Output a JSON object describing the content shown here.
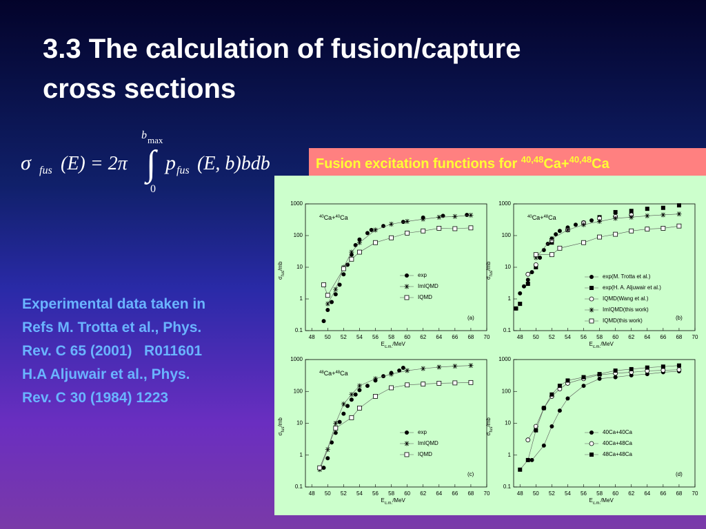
{
  "slide": {
    "title": "3.3 The calculation of fusion/capture cross sections",
    "formula": [
      "σ",
      "fus",
      "(E) = 2π",
      "∫",
      "b",
      "max",
      "0",
      "p",
      "fus",
      "(E, b)bdb"
    ],
    "notes": [
      "Experimental data taken in",
      "Refs M. Trotta et al., Phys.",
      "Rev. C 65 (2001)   R011601",
      "H.A Aljuwair et al., Phys.",
      "Rev. C 30 (1984) 1223"
    ],
    "banner": [
      "Fusion excitation functions for ",
      "40,48",
      "Ca+",
      "40,48",
      "Ca"
    ]
  },
  "chart_data": [
    {
      "type": "scatter",
      "panel": "(a)",
      "label": [
        "40",
        "Ca+",
        "40",
        "Ca"
      ],
      "xlabel": [
        "E",
        "c.m.",
        "/MeV"
      ],
      "ylabel": [
        "σ",
        "fus",
        "/mb"
      ],
      "xlim": [
        47.2,
        70
      ],
      "ylim": [
        0.1,
        1000
      ],
      "log_y": true,
      "xticks": [
        48,
        50,
        52,
        54,
        56,
        58,
        60,
        62,
        64,
        66,
        68,
        70
      ],
      "yticks": [
        0.1,
        1,
        10,
        100,
        1000
      ],
      "series": [
        {
          "name": "exp",
          "marker": "filled-circle",
          "color": "#000000",
          "line": false,
          "x": [
            49.5,
            50,
            50.5,
            51,
            51.5,
            52,
            52.5,
            53,
            53.5,
            54,
            55,
            55.5,
            57,
            59.5,
            62,
            64.5,
            67.5
          ],
          "values": [
            0.2,
            0.45,
            0.8,
            1.4,
            2.8,
            6,
            12,
            25,
            50,
            75,
            120,
            150,
            200,
            270,
            370,
            420,
            450
          ]
        },
        {
          "name": "ImIQMD",
          "marker": "star",
          "color": "#000000",
          "line": true,
          "x": [
            50,
            51,
            52,
            53,
            54,
            56,
            58,
            60,
            62,
            64,
            66,
            68
          ],
          "values": [
            0.7,
            2,
            10,
            30,
            60,
            150,
            230,
            280,
            330,
            380,
            400,
            440
          ]
        },
        {
          "name": "IQMD",
          "marker": "open-square",
          "color": "#000000",
          "line": true,
          "x": [
            49.5,
            50,
            52,
            53,
            54,
            56,
            58,
            60,
            62,
            64,
            66,
            68
          ],
          "values": [
            2.8,
            1.3,
            9,
            18,
            30,
            60,
            85,
            120,
            140,
            170,
            165,
            175
          ]
        }
      ]
    },
    {
      "type": "scatter",
      "panel": "(b)",
      "label": [
        "40",
        "Ca+",
        "48",
        "Ca"
      ],
      "xlabel": [
        "E",
        "c.m.",
        "/MeV"
      ],
      "ylabel": [
        "σ",
        "fus",
        "/mb"
      ],
      "xlim": [
        47.2,
        70
      ],
      "ylim": [
        0.1,
        1000
      ],
      "log_y": true,
      "xticks": [
        48,
        50,
        52,
        54,
        56,
        58,
        60,
        62,
        64,
        66,
        68,
        70
      ],
      "yticks": [
        0.1,
        1,
        10,
        100,
        1000
      ],
      "series": [
        {
          "name": "exp(M. Trotta et al.)",
          "marker": "filled-circle",
          "color": "#000000",
          "line": false,
          "x": [
            47.5,
            48,
            48.5,
            49,
            49.5,
            50,
            50.5,
            51,
            51.5,
            52,
            52.5,
            53,
            54,
            55,
            56,
            57,
            58,
            60,
            62
          ],
          "values": [
            0.5,
            1.5,
            2.5,
            4,
            7,
            12,
            20,
            35,
            55,
            80,
            110,
            140,
            180,
            220,
            260,
            300,
            330,
            400,
            500
          ]
        },
        {
          "name": "exp(H. A. Aljuwair et al.)",
          "marker": "filled-square",
          "color": "#000000",
          "line": false,
          "x": [
            47.5,
            48,
            49,
            50,
            52,
            54,
            56,
            58,
            60,
            62,
            64,
            66,
            68
          ],
          "values": [
            0.5,
            0.7,
            3,
            10,
            60,
            150,
            250,
            380,
            550,
            600,
            700,
            750,
            900
          ]
        },
        {
          "name": "IQMD(Wang et al.)",
          "marker": "open-circle",
          "color": "#000000",
          "line": false,
          "x": [
            49,
            50,
            52,
            54,
            56,
            58,
            60,
            62
          ],
          "values": [
            6,
            12,
            70,
            150,
            250,
            350,
            400,
            450
          ]
        },
        {
          "name": "ImIQMD(this work)",
          "marker": "star",
          "color": "#000000",
          "line": true,
          "x": [
            50,
            52,
            54,
            56,
            58,
            60,
            62,
            64,
            66,
            68
          ],
          "values": [
            20,
            80,
            150,
            220,
            280,
            350,
            380,
            420,
            450,
            480
          ]
        },
        {
          "name": "IQMD(this work)",
          "marker": "open-square",
          "color": "#000000",
          "line": true,
          "x": [
            50,
            52,
            53,
            56,
            58,
            60,
            62,
            64,
            66,
            68
          ],
          "values": [
            25,
            25,
            40,
            60,
            90,
            110,
            140,
            160,
            170,
            200
          ]
        }
      ]
    },
    {
      "type": "scatter",
      "panel": "(c)",
      "label": [
        "48",
        "Ca+",
        "48",
        "Ca"
      ],
      "xlabel": [
        "E",
        "c.m.",
        "/MeV"
      ],
      "ylabel": [
        "σ",
        "fus",
        "/mb"
      ],
      "xlim": [
        47.2,
        70
      ],
      "ylim": [
        0.1,
        1000
      ],
      "log_y": true,
      "xticks": [
        48,
        50,
        52,
        54,
        56,
        58,
        60,
        62,
        64,
        66,
        68,
        70
      ],
      "yticks": [
        0.1,
        1,
        10,
        100,
        1000
      ],
      "series": [
        {
          "name": "exp",
          "marker": "filled-circle",
          "color": "#000000",
          "line": false,
          "x": [
            49.5,
            50,
            50.5,
            51,
            51.5,
            52,
            52.5,
            53,
            53.5,
            54,
            55,
            56,
            57,
            58,
            59,
            59.5
          ],
          "values": [
            0.4,
            0.8,
            2.5,
            5,
            11,
            20,
            35,
            55,
            80,
            110,
            150,
            220,
            300,
            380,
            450,
            550
          ]
        },
        {
          "name": "ImIQMD",
          "marker": "star",
          "color": "#000000",
          "line": true,
          "x": [
            49,
            50,
            51,
            52,
            53,
            54,
            56,
            58,
            60,
            62,
            64,
            66,
            68
          ],
          "values": [
            0.35,
            1.5,
            10,
            40,
            80,
            150,
            250,
            350,
            450,
            520,
            580,
            620,
            650
          ]
        },
        {
          "name": "IQMD",
          "marker": "open-square",
          "color": "#000000",
          "line": true,
          "x": [
            49,
            51,
            53,
            54,
            56,
            58,
            60,
            62,
            64,
            66,
            68
          ],
          "values": [
            0.4,
            7,
            15,
            30,
            70,
            130,
            160,
            170,
            180,
            185,
            190
          ]
        }
      ]
    },
    {
      "type": "scatter",
      "panel": "(d)",
      "xlabel": [
        "E",
        "c.m.",
        "/MeV"
      ],
      "ylabel": [
        "σ",
        "fus",
        "/mb"
      ],
      "xlim": [
        47.2,
        70
      ],
      "ylim": [
        0.1,
        1000
      ],
      "log_y": true,
      "xticks": [
        48,
        50,
        52,
        54,
        56,
        58,
        60,
        62,
        64,
        66,
        68,
        70
      ],
      "yticks": [
        0.1,
        1,
        10,
        100,
        1000
      ],
      "series": [
        {
          "name": "40Ca+40Ca",
          "marker": "filled-circle",
          "color": "#000000",
          "line": true,
          "x": [
            49.5,
            51,
            52,
            53,
            54,
            56,
            58,
            60,
            62,
            64,
            66,
            68
          ],
          "values": [
            0.7,
            2,
            8,
            25,
            60,
            150,
            250,
            280,
            320,
            350,
            400,
            430
          ]
        },
        {
          "name": "40Ca+48Ca",
          "marker": "open-circle",
          "color": "#000000",
          "line": true,
          "x": [
            49,
            50,
            51,
            52,
            53,
            54,
            56,
            58,
            60,
            62,
            64,
            66,
            68
          ],
          "values": [
            3,
            8,
            30,
            70,
            120,
            180,
            250,
            330,
            370,
            400,
            440,
            460,
            480
          ]
        },
        {
          "name": "48Ca+48Ca",
          "marker": "filled-square",
          "color": "#000000",
          "line": true,
          "x": [
            48,
            49,
            50,
            51,
            52,
            53,
            54,
            56,
            58,
            60,
            62,
            64,
            66,
            68
          ],
          "values": [
            0.35,
            0.7,
            6,
            30,
            80,
            150,
            220,
            280,
            350,
            450,
            500,
            560,
            600,
            650
          ]
        }
      ]
    }
  ]
}
